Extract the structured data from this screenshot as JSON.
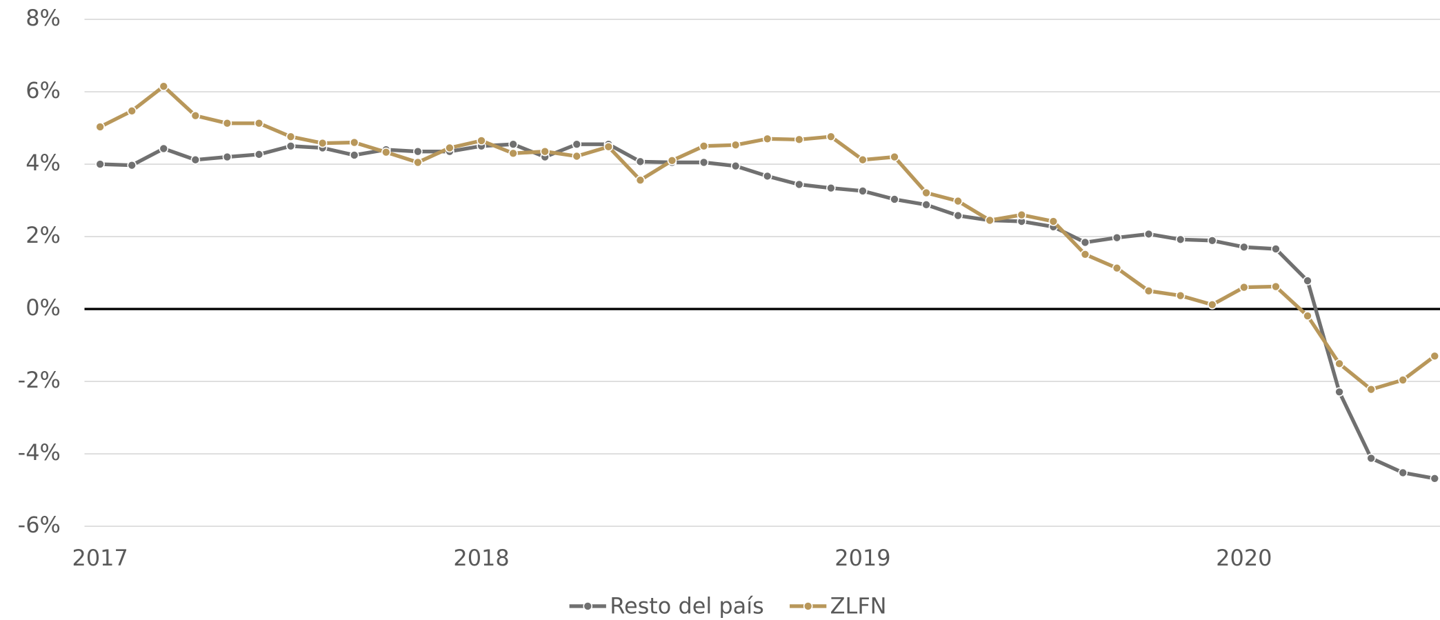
{
  "chart_data": {
    "type": "line",
    "categories": [
      "2017",
      null,
      null,
      null,
      null,
      null,
      null,
      null,
      null,
      null,
      null,
      null,
      "2018",
      null,
      null,
      null,
      null,
      null,
      null,
      null,
      null,
      null,
      null,
      null,
      "2019",
      null,
      null,
      null,
      null,
      null,
      null,
      null,
      null,
      null,
      null,
      null,
      "2020",
      null,
      null,
      null,
      null,
      null,
      null
    ],
    "series": [
      {
        "name": "Resto del país",
        "color": "#707070",
        "values": [
          4.0,
          3.97,
          4.43,
          4.12,
          4.2,
          4.27,
          4.5,
          4.45,
          4.25,
          4.4,
          4.35,
          4.35,
          4.5,
          4.55,
          4.2,
          4.55,
          4.55,
          4.07,
          4.05,
          4.05,
          3.95,
          3.67,
          3.44,
          3.34,
          3.26,
          3.03,
          2.88,
          2.58,
          2.45,
          2.42,
          2.27,
          1.84,
          1.97,
          2.07,
          1.92,
          1.89,
          1.71,
          1.66,
          0.78,
          -2.29,
          -4.12,
          -4.52,
          -4.68
        ]
      },
      {
        "name": "ZLFN",
        "color": "#b8975a",
        "values": [
          5.03,
          5.47,
          6.15,
          5.34,
          5.13,
          5.13,
          4.76,
          4.58,
          4.6,
          4.33,
          4.05,
          4.45,
          4.65,
          4.3,
          4.35,
          4.22,
          4.48,
          3.56,
          4.1,
          4.5,
          4.53,
          4.7,
          4.68,
          4.76,
          4.12,
          4.2,
          3.21,
          2.98,
          2.45,
          2.6,
          2.42,
          1.51,
          1.13,
          0.5,
          0.37,
          0.12,
          0.6,
          0.62,
          -0.19,
          -1.51,
          -2.22,
          -1.96,
          -1.3
        ]
      }
    ],
    "ylim": [
      -6,
      8
    ],
    "yticks": [
      {
        "value": -6,
        "label": "-6%"
      },
      {
        "value": -4,
        "label": "-4%"
      },
      {
        "value": -2,
        "label": "-2%"
      },
      {
        "value": 0,
        "label": "0%"
      },
      {
        "value": 2,
        "label": "2%"
      },
      {
        "value": 4,
        "label": "4%"
      },
      {
        "value": 6,
        "label": "6%"
      },
      {
        "value": 8,
        "label": "8%"
      }
    ],
    "grid": true,
    "legend": "bottom"
  }
}
